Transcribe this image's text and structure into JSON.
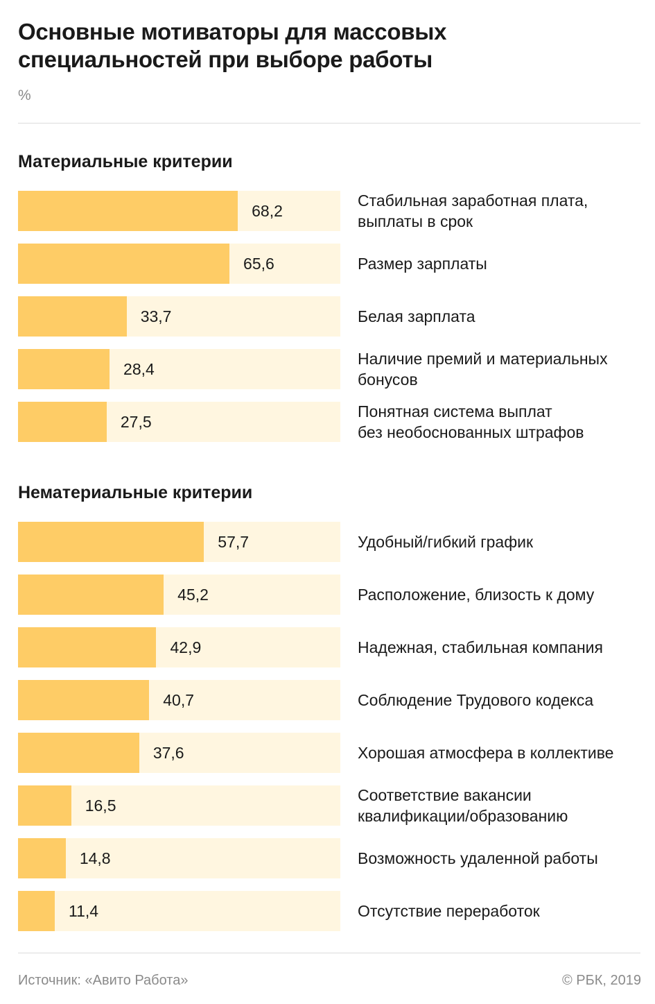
{
  "header": {
    "title": "Основные мотиваторы для массовых специальностей при выборе работы",
    "unit": "%"
  },
  "chart_data": [
    {
      "type": "bar",
      "orientation": "horizontal",
      "title": "Материальные критерии",
      "xlim": [
        0,
        100
      ],
      "colors": {
        "bar": "#fecc66",
        "track": "#fff6e0"
      },
      "categories": [
        "Стабильная заработная плата,\nвыплаты в срок",
        "Размер зарплаты",
        "Белая зарплата",
        "Наличие премий и материальных\nбонусов",
        "Понятная система выплат\nбез необоснованных штрафов"
      ],
      "values": [
        68.2,
        65.6,
        33.7,
        28.4,
        27.5
      ],
      "value_labels": [
        "68,2",
        "65,6",
        "33,7",
        "28,4",
        "27,5"
      ]
    },
    {
      "type": "bar",
      "orientation": "horizontal",
      "title": "Нематериальные критерии",
      "xlim": [
        0,
        100
      ],
      "colors": {
        "bar": "#fecc66",
        "track": "#fff6e0"
      },
      "categories": [
        "Удобный/гибкий график",
        "Расположение, близость к дому",
        "Надежная, стабильная компания",
        "Соблюдение Трудового кодекса",
        "Хорошая атмосфера в коллективе",
        "Соответствие вакансии\nквалификации/образованию",
        "Возможность удаленной работы",
        "Отсутствие переработок"
      ],
      "values": [
        57.7,
        45.2,
        42.9,
        40.7,
        37.6,
        16.5,
        14.8,
        11.4
      ],
      "value_labels": [
        "57,7",
        "45,2",
        "42,9",
        "40,7",
        "37,6",
        "16,5",
        "14,8",
        "11,4"
      ]
    }
  ],
  "footer": {
    "source": "Источник: «Авито Работа»",
    "copyright": "© РБК, 2019"
  }
}
